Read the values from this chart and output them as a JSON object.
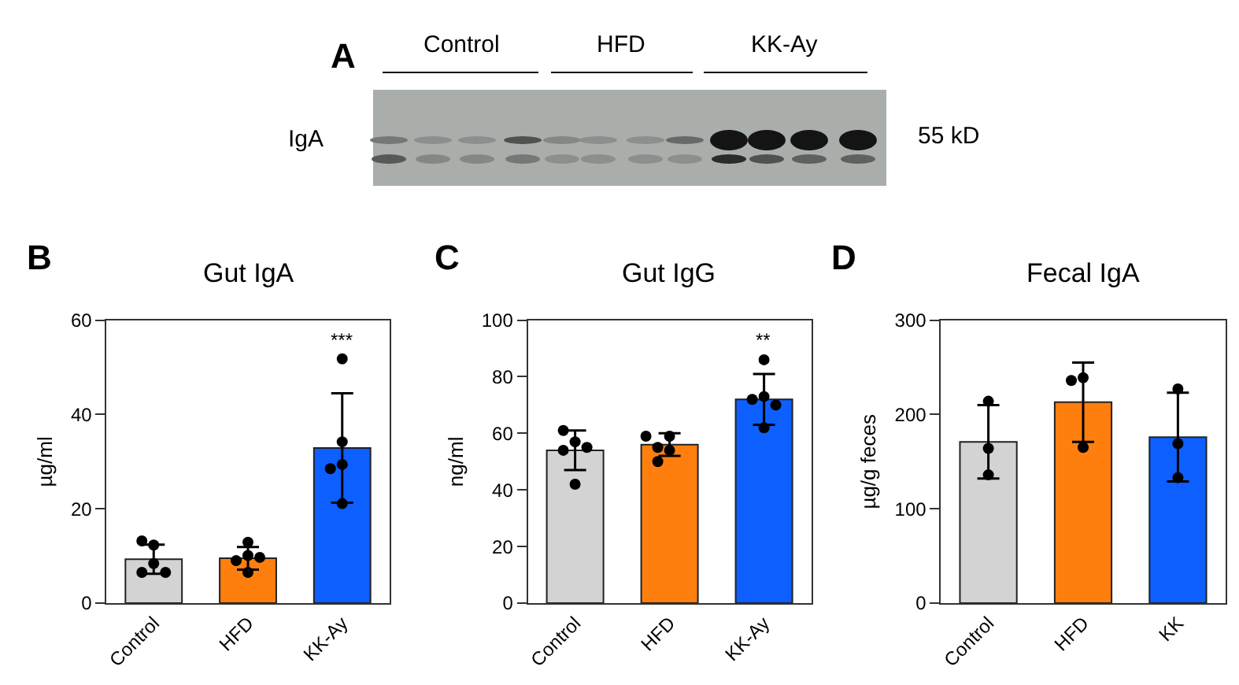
{
  "chart_data": [
    {
      "type": "other",
      "annotations": [
        "A",
        "Control",
        "HFD",
        "KK-Ay",
        "IgA",
        "55 kD"
      ]
    },
    {
      "type": "bar",
      "title": "Gut IgA",
      "ylabel": "µg/ml",
      "categories": [
        "Control",
        "HFD",
        "KK-Ay"
      ],
      "series": [
        {
          "colors": [
            "#d3d3d3",
            "#ff7f0e",
            "#0d5fff"
          ],
          "values": [
            9.3,
            9.5,
            32.9
          ],
          "errors": [
            3.1,
            2.4,
            11.6
          ]
        },
        {
          "type": "scatter",
          "color": "#000000",
          "x": [
            "Control",
            "Control",
            "Control",
            "Control",
            "Control",
            "HFD",
            "HFD",
            "HFD",
            "HFD",
            "HFD",
            "KK-Ay",
            "KK-Ay",
            "KK-Ay",
            "KK-Ay",
            "KK-Ay"
          ],
          "values": [
            12.3,
            13.2,
            8.4,
            6.5,
            6.5,
            10.1,
            12.9,
            9.0,
            6.5,
            9.7,
            51.8,
            34.2,
            29.4,
            28.5,
            21.1
          ]
        }
      ],
      "ylim": [
        0,
        60
      ],
      "yticks": [
        0,
        20,
        40,
        60
      ],
      "grid": false,
      "marker": "circle",
      "annotations": [
        "B",
        "***"
      ]
    },
    {
      "type": "bar",
      "title": "Gut IgG",
      "ylabel": "ng/ml",
      "categories": [
        "Control",
        "HFD",
        "KK-Ay"
      ],
      "series": [
        {
          "colors": [
            "#d3d3d3",
            "#ff7f0e",
            "#0d5fff"
          ],
          "values": [
            54,
            56,
            72
          ],
          "errors": [
            7,
            4,
            9
          ]
        },
        {
          "type": "scatter",
          "color": "#000000",
          "x": [
            "Control",
            "Control",
            "Control",
            "Control",
            "Control",
            "HFD",
            "HFD",
            "HFD",
            "HFD",
            "HFD",
            "KK-Ay",
            "KK-Ay",
            "KK-Ay",
            "KK-Ay",
            "KK-Ay"
          ],
          "values": [
            57,
            61,
            54,
            55,
            42,
            59,
            59,
            55,
            54,
            50,
            86,
            73,
            72,
            70,
            62
          ]
        }
      ],
      "ylim": [
        0,
        100
      ],
      "yticks": [
        0,
        20,
        40,
        60,
        80,
        100
      ],
      "grid": false,
      "marker": "circle",
      "annotations": [
        "C",
        "**"
      ]
    },
    {
      "type": "bar",
      "title": "Fecal IgA",
      "ylabel": "µg/g feces",
      "categories": [
        "Control",
        "HFD",
        "KK"
      ],
      "series": [
        {
          "colors": [
            "#d3d3d3",
            "#ff7f0e",
            "#0d5fff"
          ],
          "values": [
            171,
            213,
            176
          ],
          "errors": [
            39,
            42,
            47
          ]
        },
        {
          "type": "scatter",
          "color": "#000000",
          "x": [
            "Control",
            "Control",
            "Control",
            "HFD",
            "HFD",
            "HFD",
            "KK",
            "KK",
            "KK"
          ],
          "values": [
            214,
            164,
            136,
            239,
            236,
            165,
            227,
            169,
            133
          ]
        }
      ],
      "ylim": [
        0,
        300
      ],
      "yticks": [
        0,
        100,
        200,
        300
      ],
      "grid": false,
      "marker": "circle",
      "annotations": [
        "D"
      ]
    }
  ]
}
